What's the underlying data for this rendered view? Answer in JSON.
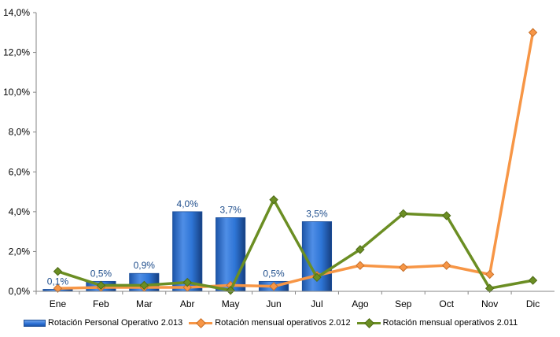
{
  "chart_data": {
    "type": "bar+line",
    "categories": [
      "Ene",
      "Feb",
      "Mar",
      "Abr",
      "May",
      "Jun",
      "Jul",
      "Ago",
      "Sep",
      "Oct",
      "Nov",
      "Dic"
    ],
    "ylim": [
      0,
      14
    ],
    "yticks": [
      "0,0%",
      "2,0%",
      "4,0%",
      "6,0%",
      "8,0%",
      "10,0%",
      "12,0%",
      "14,0%"
    ],
    "grid": false,
    "legend_position": "bottom",
    "series": [
      {
        "name": "Rotación Personal Operativo 2.013",
        "type": "bar",
        "color": "#2E75D6",
        "values": [
          0.1,
          0.5,
          0.9,
          4.0,
          3.7,
          0.5,
          3.5,
          null,
          null,
          null,
          null,
          null
        ],
        "labels": [
          "0,1%",
          "0,5%",
          "0,9%",
          "4,0%",
          "3,7%",
          "0,5%",
          "3,5%",
          null,
          null,
          null,
          null,
          null
        ]
      },
      {
        "name": "Rotación mensual operativos 2.012",
        "type": "line",
        "color": "#F79646",
        "values": [
          0.15,
          0.2,
          0.2,
          0.2,
          0.3,
          0.25,
          0.8,
          1.3,
          1.2,
          1.3,
          0.85,
          13.0
        ]
      },
      {
        "name": "Rotación mensual operativos 2.011",
        "type": "line",
        "color": "#6B8E23",
        "values": [
          1.0,
          0.3,
          0.3,
          0.45,
          0.05,
          4.6,
          0.7,
          2.1,
          3.9,
          3.8,
          0.15,
          0.55
        ]
      }
    ]
  }
}
